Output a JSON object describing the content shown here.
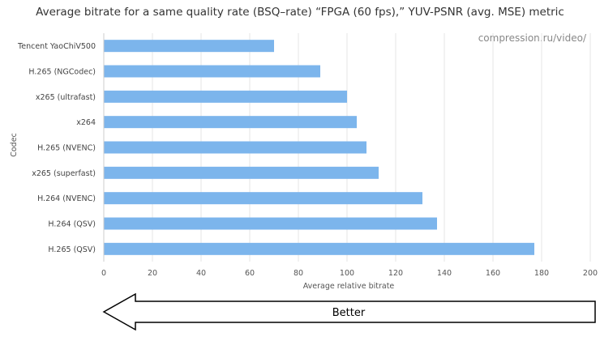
{
  "chart_data": {
    "type": "bar",
    "orientation": "horizontal",
    "title": "Average bitrate for a same quality rate (BSQ–rate) “FPGA (60 fps),” YUV-PSNR (avg. MSE) metric",
    "watermark": "compression.ru/video/",
    "xlabel": "Average relative bitrate",
    "ylabel": "Codec",
    "xlim": [
      0,
      200
    ],
    "xticks": [
      0,
      20,
      40,
      60,
      80,
      100,
      120,
      140,
      160,
      180,
      200
    ],
    "grid": true,
    "categories": [
      "Tencent YaoChiV500",
      "H.265 (NGCodec)",
      "x265 (ultrafast)",
      "x264",
      "H.265 (NVENC)",
      "x265 (superfast)",
      "H.264 (NVENC)",
      "H.264 (QSV)",
      "H.265 (QSV)"
    ],
    "values": [
      70,
      89,
      100,
      104,
      108,
      113,
      131,
      137,
      177
    ],
    "bar_color": "#7cb5ec",
    "annotation": "Better"
  }
}
